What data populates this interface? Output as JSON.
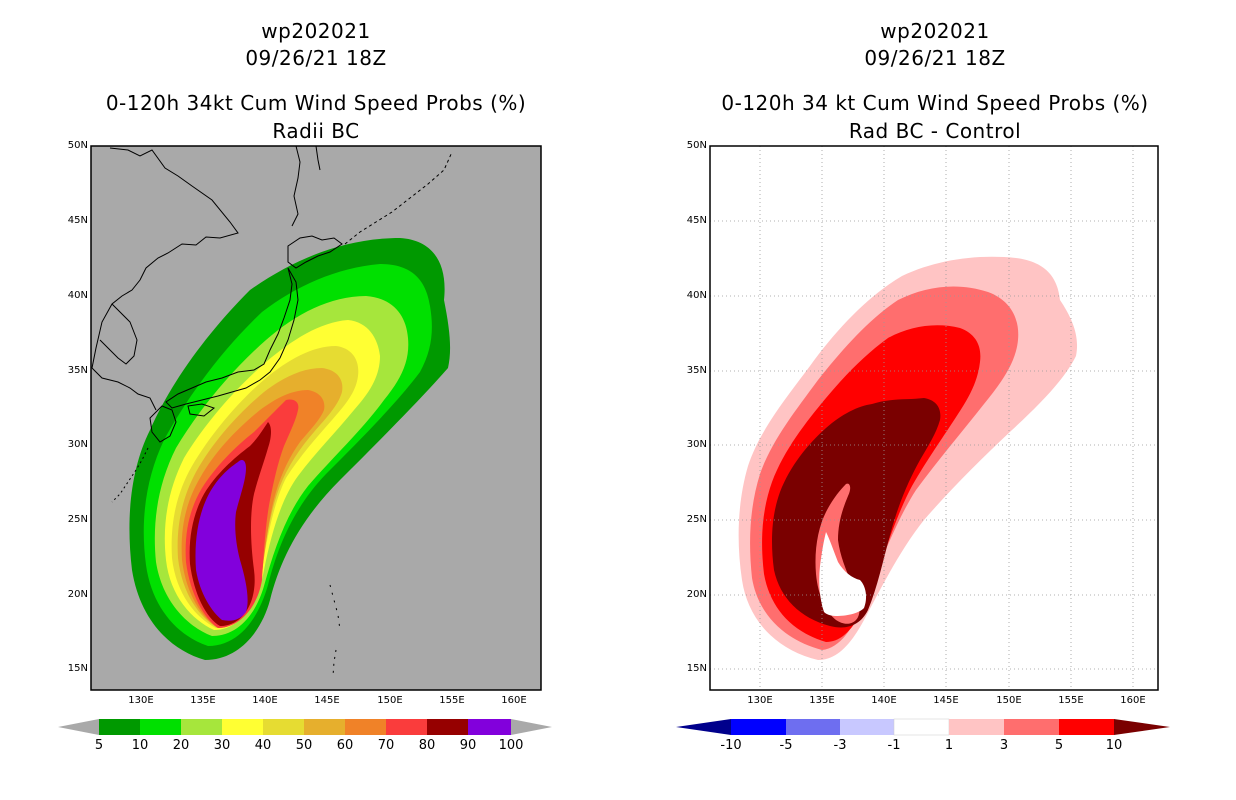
{
  "left_panel": {
    "title_line1": "wp202021",
    "title_line2": "09/26/21 18Z",
    "title_line3": "0-120h 34kt Cum Wind Speed Probs (%)",
    "title_line4": "Radii BC",
    "background_color": "#a9a9a9",
    "colorbar": {
      "colors": [
        "#009900",
        "#00e000",
        "#a6e63c",
        "#ffff33",
        "#e6dc32",
        "#e6af2d",
        "#f08228",
        "#fa3c3c",
        "#960000",
        "#8200dc"
      ],
      "labels": [
        "5",
        "10",
        "20",
        "30",
        "40",
        "50",
        "60",
        "70",
        "80",
        "90",
        "100"
      ],
      "end_color": "#a9a9a9"
    }
  },
  "right_panel": {
    "title_line1": "wp202021",
    "title_line2": "09/26/21 18Z",
    "title_line3": "0-120h 34 kt Cum Wind Speed Probs (%)",
    "title_line4": "Rad BC - Control",
    "background_color": "#ffffff",
    "colorbar": {
      "colors": [
        "#0000cc",
        "#0000ff",
        "#6e6ef0",
        "#c8c8ff",
        "#ffffff",
        "#ffc4c4",
        "#ff6e6e",
        "#ff0000"
      ],
      "labels": [
        "-10",
        "-5",
        "-3",
        "-1",
        "1",
        "3",
        "5",
        "10"
      ],
      "low_end_color": "#00008c",
      "high_end_color": "#7a0000"
    }
  },
  "axes": {
    "lat_ticks": [
      "50N",
      "45N",
      "40N",
      "35N",
      "30N",
      "25N",
      "20N",
      "15N"
    ],
    "lon_ticks": [
      "130E",
      "135E",
      "140E",
      "145E",
      "150E",
      "155E",
      "160E"
    ]
  },
  "left_chart_data": {
    "type": "heatmap",
    "title": "0-120h 34kt Cum Wind Speed Probs (%)",
    "variable": "34kt cumulative wind speed probability",
    "units": "%",
    "xlim": [
      126,
      162
    ],
    "ylim": [
      13.5,
      50
    ],
    "levels": [
      5,
      10,
      20,
      30,
      40,
      50,
      60,
      70,
      80,
      90,
      100
    ]
  },
  "right_chart_data": {
    "type": "heatmap",
    "title": "0-120h 34 kt Cum Wind Speed Probs (%)",
    "variable": "Rad BC - Control difference",
    "units": "%",
    "xlim": [
      126,
      162
    ],
    "ylim": [
      13.5,
      50
    ],
    "levels": [
      -10,
      -5,
      -3,
      -1,
      1,
      3,
      5,
      10
    ]
  }
}
